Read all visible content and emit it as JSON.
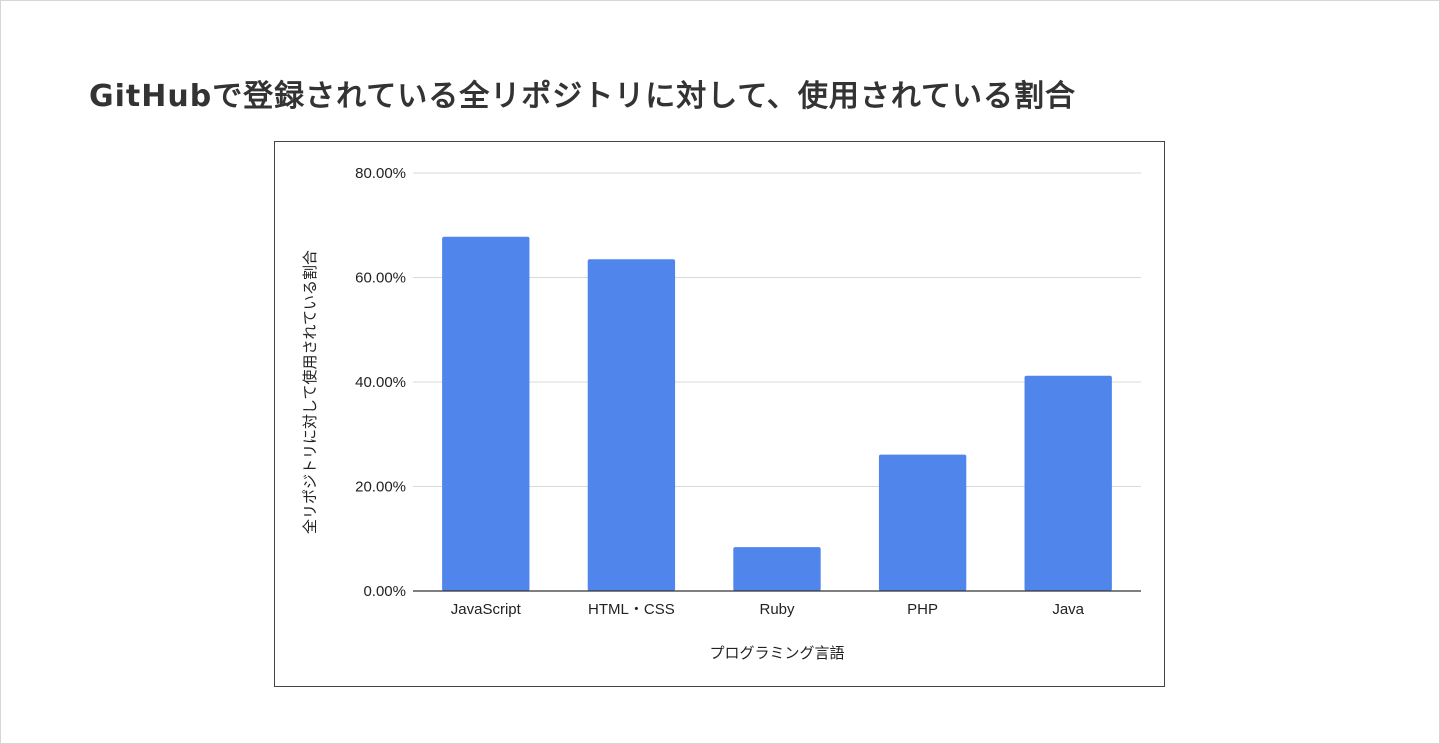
{
  "page": {
    "title": "GitHubで登録されている全リポジトリに対して、使用されている割合"
  },
  "chart_data": {
    "type": "bar",
    "title": "",
    "xlabel": "プログラミング言語",
    "ylabel": "全リポジトリに対して使用されている割合",
    "categories": [
      "JavaScript",
      "HTML・CSS",
      "Ruby",
      "PHP",
      "Java"
    ],
    "values": [
      67.8,
      63.5,
      8.4,
      26.1,
      41.2
    ],
    "ylim": [
      0,
      80
    ],
    "yticks": [
      0,
      20,
      40,
      60,
      80
    ],
    "ytick_labels": [
      "0.00%",
      "20.00%",
      "40.00%",
      "60.00%",
      "80.00%"
    ],
    "grid": true,
    "legend": "none",
    "bar_color": "#5086ec",
    "grid_color": "#d9d9d9",
    "axis_color": "#333333"
  }
}
